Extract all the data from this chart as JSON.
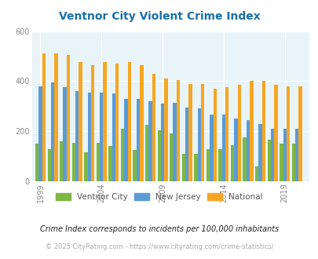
{
  "title": "Ventnor City Violent Crime Index",
  "title_color": "#1a6fad",
  "years": [
    1999,
    2000,
    2001,
    2002,
    2003,
    2004,
    2005,
    2006,
    2007,
    2008,
    2009,
    2010,
    2011,
    2012,
    2013,
    2014,
    2015,
    2016,
    2017,
    2018,
    2019,
    2020
  ],
  "ventnor_city": [
    150,
    130,
    160,
    155,
    115,
    155,
    140,
    210,
    125,
    225,
    205,
    190,
    110,
    110,
    130,
    130,
    145,
    175,
    60,
    165,
    150,
    150
  ],
  "new_jersey": [
    380,
    395,
    375,
    360,
    355,
    355,
    350,
    330,
    330,
    320,
    310,
    315,
    295,
    290,
    265,
    265,
    250,
    245,
    230,
    210,
    210,
    210
  ],
  "national": [
    510,
    510,
    505,
    475,
    465,
    475,
    470,
    475,
    465,
    430,
    410,
    405,
    390,
    390,
    370,
    375,
    385,
    400,
    400,
    385,
    380,
    380
  ],
  "bar_colors": {
    "ventnor_city": "#7db843",
    "new_jersey": "#5b9bd5",
    "national": "#f5a623"
  },
  "bg_color": "#e8f4f8",
  "ylim": [
    0,
    600
  ],
  "yticks": [
    0,
    200,
    400,
    600
  ],
  "xticks": [
    1999,
    2004,
    2009,
    2014,
    2019
  ],
  "bar_width": 0.28,
  "footnote1": "Crime Index corresponds to incidents per 100,000 inhabitants",
  "footnote2": "© 2025 CityRating.com - https://www.cityrating.com/crime-statistics/",
  "legend_labels": [
    "Ventnor City",
    "New Jersey",
    "National"
  ]
}
